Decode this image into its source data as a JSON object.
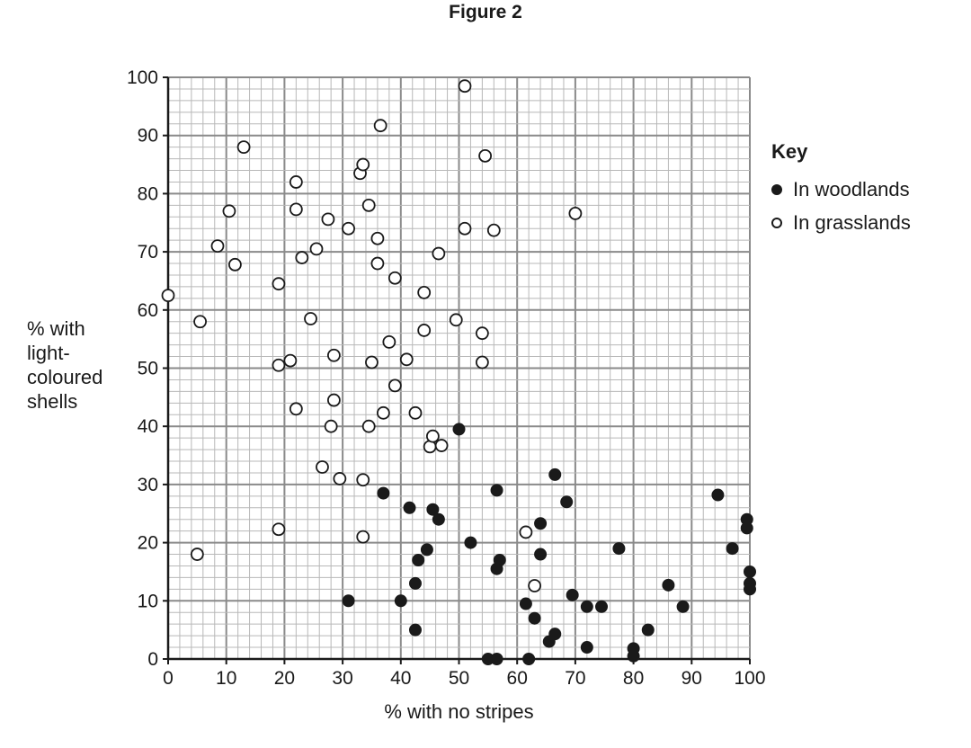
{
  "figure_title": "Figure 2",
  "chart_data": {
    "type": "scatter",
    "xlabel": "% with no stripes",
    "ylabel_lines": [
      "% with",
      "light-",
      "coloured",
      "shells"
    ],
    "xlim": [
      0,
      100
    ],
    "ylim": [
      0,
      100
    ],
    "x_ticks": [
      0,
      10,
      20,
      30,
      40,
      50,
      60,
      70,
      80,
      90,
      100
    ],
    "y_ticks": [
      0,
      10,
      20,
      30,
      40,
      50,
      60,
      70,
      80,
      90,
      100
    ],
    "grid": true,
    "legend_title": "Key",
    "legend_position": "right",
    "series": [
      {
        "name": "In woodlands",
        "marker": "filled",
        "color": "#1a1a1a",
        "points": [
          [
            50,
            39.5
          ],
          [
            37,
            28.5
          ],
          [
            41.5,
            26
          ],
          [
            45.5,
            25.7
          ],
          [
            46.5,
            24
          ],
          [
            43,
            17
          ],
          [
            44.5,
            18.8
          ],
          [
            42.5,
            13
          ],
          [
            42.5,
            5
          ],
          [
            40,
            10
          ],
          [
            31,
            10
          ],
          [
            52,
            20
          ],
          [
            56.5,
            29
          ],
          [
            57,
            17
          ],
          [
            56.5,
            15.5
          ],
          [
            55,
            0
          ],
          [
            56.5,
            0
          ],
          [
            62,
            0
          ],
          [
            61.5,
            9.5
          ],
          [
            63,
            7
          ],
          [
            65.5,
            3
          ],
          [
            66.5,
            4.3
          ],
          [
            64,
            18
          ],
          [
            64,
            23.3
          ],
          [
            66.5,
            31.7
          ],
          [
            68.5,
            27
          ],
          [
            69.5,
            11
          ],
          [
            72,
            9
          ],
          [
            74.5,
            9
          ],
          [
            72,
            2
          ],
          [
            77.5,
            19
          ],
          [
            80,
            0.5
          ],
          [
            80,
            1.8
          ],
          [
            82.5,
            5
          ],
          [
            86,
            12.7
          ],
          [
            88.5,
            9
          ],
          [
            94.5,
            28.2
          ],
          [
            97,
            19
          ],
          [
            99.5,
            24
          ],
          [
            99.5,
            22.5
          ],
          [
            100,
            15
          ],
          [
            100,
            13
          ],
          [
            100,
            12
          ]
        ]
      },
      {
        "name": "In grasslands",
        "marker": "open",
        "color": "#1a1a1a",
        "points": [
          [
            0,
            62.5
          ],
          [
            5.5,
            58
          ],
          [
            5,
            18
          ],
          [
            8.5,
            71
          ],
          [
            10.5,
            77
          ],
          [
            11.5,
            67.8
          ],
          [
            13,
            88
          ],
          [
            19,
            64.5
          ],
          [
            19,
            50.5
          ],
          [
            21,
            51.3
          ],
          [
            19,
            22.3
          ],
          [
            22,
            82
          ],
          [
            22,
            77.3
          ],
          [
            22,
            43
          ],
          [
            23,
            69
          ],
          [
            24.5,
            58.5
          ],
          [
            25.5,
            70.5
          ],
          [
            26.5,
            33
          ],
          [
            27.5,
            75.6
          ],
          [
            28,
            40
          ],
          [
            28.5,
            52.2
          ],
          [
            28.5,
            44.5
          ],
          [
            29.5,
            31
          ],
          [
            31,
            74
          ],
          [
            33,
            83.5
          ],
          [
            33.5,
            85
          ],
          [
            33.5,
            30.8
          ],
          [
            33.5,
            21
          ],
          [
            34.5,
            78
          ],
          [
            35,
            51
          ],
          [
            34.5,
            40
          ],
          [
            36,
            72.3
          ],
          [
            36,
            68
          ],
          [
            36.5,
            91.7
          ],
          [
            37,
            42.3
          ],
          [
            38,
            54.5
          ],
          [
            39,
            65.5
          ],
          [
            39,
            47
          ],
          [
            41,
            51.5
          ],
          [
            42.5,
            42.3
          ],
          [
            44,
            63
          ],
          [
            44,
            56.5
          ],
          [
            45,
            36.5
          ],
          [
            45.5,
            38.3
          ],
          [
            46.5,
            69.7
          ],
          [
            47,
            36.7
          ],
          [
            49.5,
            58.3
          ],
          [
            51,
            98.5
          ],
          [
            51,
            74
          ],
          [
            54,
            56
          ],
          [
            54,
            51
          ],
          [
            54.5,
            86.5
          ],
          [
            56,
            73.7
          ],
          [
            61.5,
            21.8
          ],
          [
            63,
            12.6
          ],
          [
            70,
            76.6
          ]
        ]
      }
    ]
  }
}
